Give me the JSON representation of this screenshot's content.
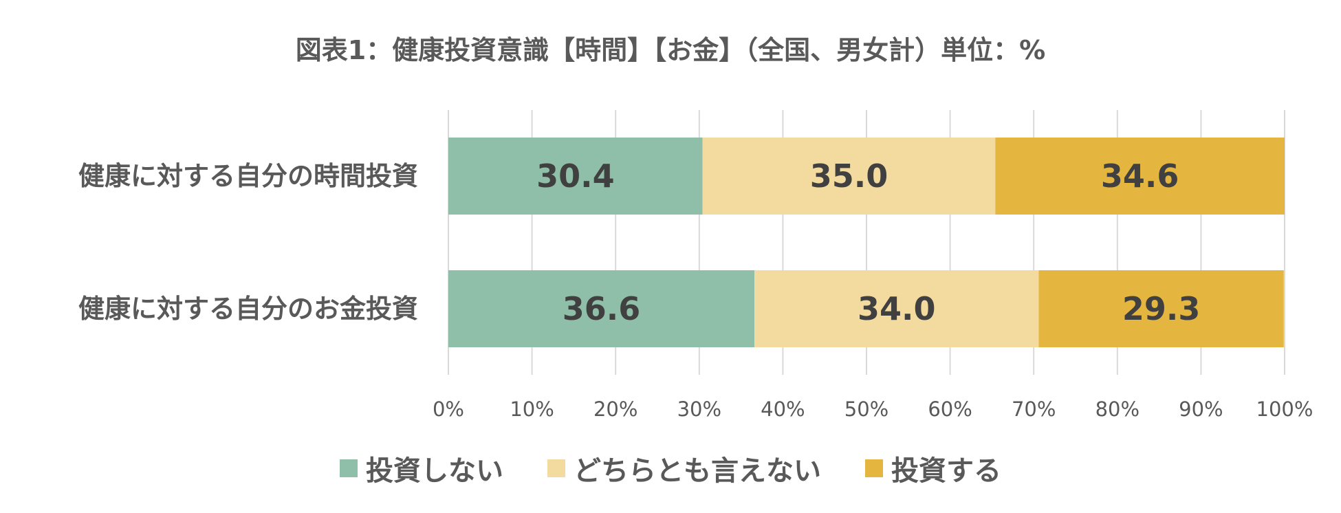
{
  "chart_data": {
    "type": "bar",
    "orientation": "horizontal",
    "stacked": "percent",
    "title": "図表1：健康投資意識【時間】【お金】（全国、男女計）単位：%",
    "categories": [
      "健康に対する自分の時間投資",
      "健康に対する自分のお金投資"
    ],
    "series": [
      {
        "name": "投資しない",
        "color": "#8fbfa9",
        "values": [
          30.4,
          36.6
        ],
        "labels": [
          "30.4",
          "36.6"
        ]
      },
      {
        "name": "どちらとも言えない",
        "color": "#f3dba0",
        "values": [
          35.0,
          34.0
        ],
        "labels": [
          "35.0",
          "34.0"
        ]
      },
      {
        "name": "投資する",
        "color": "#e4b53f",
        "values": [
          34.6,
          29.3
        ],
        "labels": [
          "34.6",
          "29.3"
        ]
      }
    ],
    "xlim": [
      0,
      100
    ],
    "xticks": [
      "0%",
      "10%",
      "20%",
      "30%",
      "40%",
      "50%",
      "60%",
      "70%",
      "80%",
      "90%",
      "100%"
    ],
    "grid": true,
    "legend_position": "bottom"
  }
}
